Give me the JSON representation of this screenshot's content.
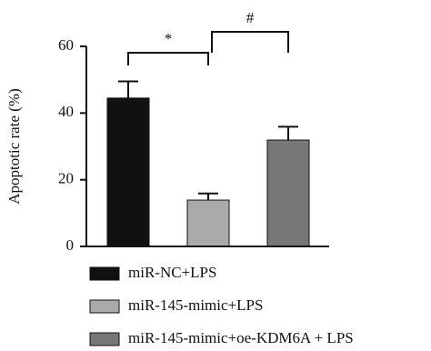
{
  "chart_data": {
    "type": "bar",
    "y_label": "Apoptotic rate (%)",
    "categories": [
      "miR-NC+LPS",
      "miR-145-mimic+LPS",
      "miR-145-mimic+oe-KDM6A + LPS"
    ],
    "values": [
      44.5,
      13.9,
      31.9
    ],
    "errors": [
      5,
      2,
      4
    ],
    "colors": [
      "#111111",
      "#aaaaaa",
      "#777777"
    ],
    "ylim": [
      0,
      60
    ],
    "yticks": [
      0,
      20,
      40,
      60
    ],
    "annotations": [
      "*",
      "#"
    ],
    "legend": "bottom"
  }
}
